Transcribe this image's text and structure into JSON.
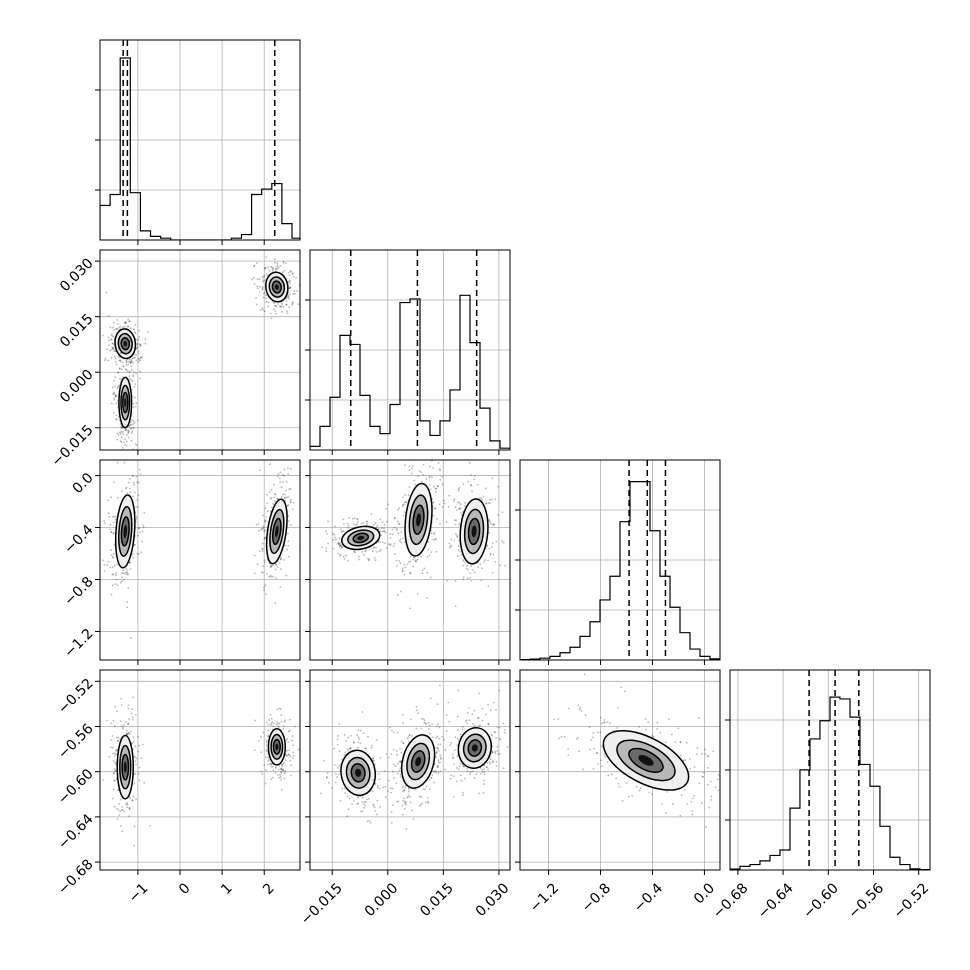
{
  "chart_data": {
    "type": "corner",
    "title": "",
    "parameters": [
      "",
      "",
      "",
      ""
    ],
    "ranges": [
      [
        -1.9,
        2.85
      ],
      [
        -0.021,
        0.033
      ],
      [
        -1.42,
        0.12
      ],
      [
        -0.687,
        -0.51
      ]
    ],
    "ticks": [
      {
        "values": [
          -1,
          0,
          1,
          2
        ],
        "labels": [
          "−1",
          "0",
          "1",
          "2"
        ]
      },
      {
        "values": [
          -0.015,
          0.0,
          0.015,
          0.03
        ],
        "labels": [
          "−0.015",
          "0.000",
          "0.015",
          "0.030"
        ]
      },
      {
        "values": [
          -1.2,
          -0.8,
          -0.4,
          0.0
        ],
        "labels": [
          "−1.2",
          "−0.8",
          "−0.4",
          "0.0"
        ]
      },
      {
        "values": [
          -0.68,
          -0.64,
          -0.6,
          -0.56,
          -0.52
        ],
        "labels": [
          "−0.68",
          "−0.64",
          "−0.60",
          "−0.56",
          "−0.52"
        ]
      }
    ],
    "diag_grid_fractions": [
      0.25,
      0.5,
      0.75
    ],
    "grid": true,
    "histograms": [
      {
        "param": 0,
        "bin_edges": [
          -1.9,
          -1.66,
          -1.42,
          -1.18,
          -0.94,
          -0.7,
          -0.46,
          -0.22,
          0.02,
          0.26,
          0.5,
          0.74,
          0.98,
          1.22,
          1.46,
          1.7,
          1.94,
          2.18,
          2.42,
          2.66,
          2.85
        ],
        "counts": [
          0.19,
          0.25,
          1.0,
          0.26,
          0.05,
          0.02,
          0.01,
          0,
          0,
          0,
          0,
          0,
          0,
          0.01,
          0.03,
          0.25,
          0.28,
          0.31,
          0.09,
          0.01
        ]
      },
      {
        "param": 1,
        "bin_edges": [
          -0.021,
          -0.0183,
          -0.0156,
          -0.0129,
          -0.0102,
          -0.0075,
          -0.0048,
          -0.0021,
          0.0006,
          0.0033,
          0.006,
          0.0087,
          0.0114,
          0.0141,
          0.0168,
          0.0195,
          0.0222,
          0.0249,
          0.0276,
          0.0303,
          0.033
        ],
        "counts": [
          0.02,
          0.13,
          0.29,
          0.63,
          0.58,
          0.3,
          0.13,
          0.09,
          0.25,
          0.81,
          0.83,
          0.16,
          0.08,
          0.16,
          0.33,
          0.85,
          0.59,
          0.23,
          0.05,
          0.01
        ]
      },
      {
        "param": 2,
        "bin_edges": [
          -1.42,
          -1.343,
          -1.266,
          -1.189,
          -1.112,
          -1.035,
          -0.958,
          -0.881,
          -0.804,
          -0.727,
          -0.65,
          -0.573,
          -0.496,
          -0.419,
          -0.342,
          -0.265,
          -0.188,
          -0.111,
          -0.034,
          0.043,
          0.12
        ],
        "counts": [
          0.002,
          0.005,
          0.01,
          0.02,
          0.04,
          0.07,
          0.13,
          0.21,
          0.33,
          0.46,
          0.76,
          0.98,
          0.98,
          0.71,
          0.46,
          0.29,
          0.15,
          0.06,
          0.02,
          0.006
        ]
      },
      {
        "param": 3,
        "bin_edges": [
          -0.687,
          -0.6782,
          -0.6693,
          -0.6605,
          -0.6516,
          -0.6428,
          -0.6339,
          -0.6251,
          -0.6162,
          -0.6074,
          -0.5985,
          -0.5897,
          -0.5808,
          -0.572,
          -0.5631,
          -0.5543,
          -0.5454,
          -0.5366,
          -0.5277,
          -0.5189,
          -0.51
        ],
        "counts": [
          0.005,
          0.02,
          0.03,
          0.05,
          0.08,
          0.11,
          0.34,
          0.55,
          0.72,
          0.82,
          0.95,
          0.94,
          0.84,
          0.58,
          0.46,
          0.24,
          0.07,
          0.03,
          0.006,
          0.002
        ]
      }
    ],
    "quantiles": [
      [
        -1.35,
        -1.25,
        2.25
      ],
      [
        -0.01,
        0.008,
        0.024
      ],
      [
        -0.58,
        -0.44,
        -0.3
      ],
      [
        -0.617,
        -0.594,
        -0.573
      ]
    ],
    "contour_panels": [
      {
        "row": 1,
        "col": 0,
        "blobs": [
          {
            "cx": -1.3,
            "cy": 0.0077,
            "rx": 0.24,
            "ry": 0.004,
            "tilt": -6
          },
          {
            "cx": -1.3,
            "cy": -0.0082,
            "rx": 0.15,
            "ry": 0.0068,
            "tilt": 0
          },
          {
            "cx": 2.3,
            "cy": 0.023,
            "rx": 0.26,
            "ry": 0.004,
            "tilt": -8
          }
        ]
      },
      {
        "row": 2,
        "col": 0,
        "blobs": [
          {
            "cx": -1.3,
            "cy": -0.43,
            "rx": 0.22,
            "ry": 0.28,
            "tilt": 4
          },
          {
            "cx": 2.3,
            "cy": -0.43,
            "rx": 0.22,
            "ry": 0.25,
            "tilt": 8
          }
        ]
      },
      {
        "row": 2,
        "col": 1,
        "blobs": [
          {
            "cx": -0.0073,
            "cy": -0.48,
            "rx": 0.0052,
            "ry": 0.085,
            "tilt": -12
          },
          {
            "cx": 0.0083,
            "cy": -0.34,
            "rx": 0.0035,
            "ry": 0.28,
            "tilt": 6
          },
          {
            "cx": 0.0233,
            "cy": -0.43,
            "rx": 0.0037,
            "ry": 0.25,
            "tilt": 4
          }
        ]
      },
      {
        "row": 3,
        "col": 0,
        "blobs": [
          {
            "cx": -1.3,
            "cy": -0.596,
            "rx": 0.19,
            "ry": 0.028,
            "tilt": 0
          },
          {
            "cx": 2.3,
            "cy": -0.578,
            "rx": 0.2,
            "ry": 0.016,
            "tilt": 0
          }
        ]
      },
      {
        "row": 3,
        "col": 1,
        "blobs": [
          {
            "cx": -0.008,
            "cy": -0.601,
            "rx": 0.0046,
            "ry": 0.02,
            "tilt": -8
          },
          {
            "cx": 0.0082,
            "cy": -0.591,
            "rx": 0.0042,
            "ry": 0.024,
            "tilt": 14
          },
          {
            "cx": 0.0235,
            "cy": -0.579,
            "rx": 0.0044,
            "ry": 0.018,
            "tilt": 10
          }
        ]
      },
      {
        "row": 3,
        "col": 2,
        "blobs": [
          {
            "cx": -0.45,
            "cy": -0.59,
            "rx": 0.36,
            "ry": 0.02,
            "tilt": 28
          }
        ]
      }
    ]
  }
}
